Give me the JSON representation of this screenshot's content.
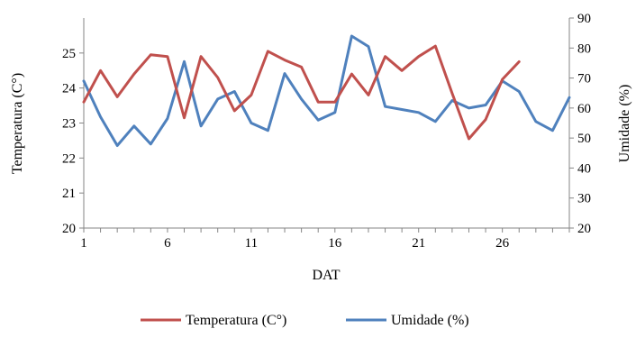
{
  "chart_data": {
    "type": "line",
    "title": "",
    "xlabel": "DAT",
    "ylabel_left": "Temperatura (C°)",
    "ylabel_right": "Umidade (%)",
    "x_ticks": [
      "1",
      "6",
      "11",
      "16",
      "21",
      "26"
    ],
    "xlim": [
      1,
      30
    ],
    "ylim_left": [
      20,
      26
    ],
    "ylim_right": [
      20,
      90
    ],
    "yticks_left": [
      "20",
      "21",
      "22",
      "23",
      "24",
      "25"
    ],
    "yticks_right": [
      "20",
      "30",
      "40",
      "50",
      "60",
      "70",
      "80",
      "90"
    ],
    "grid": false,
    "legend_position": "bottom",
    "series": [
      {
        "name": "Temperatura (C°)",
        "axis": "left",
        "color": "#c0504d",
        "x": [
          1,
          2,
          3,
          4,
          5,
          6,
          7,
          8,
          9,
          10,
          11,
          12,
          13,
          14,
          15,
          16,
          17,
          18,
          19,
          20,
          21,
          22,
          23,
          24,
          25,
          26,
          27
        ],
        "values": [
          23.6,
          24.5,
          23.75,
          24.4,
          24.95,
          24.9,
          23.15,
          24.9,
          24.3,
          23.35,
          23.8,
          25.05,
          24.8,
          24.6,
          23.6,
          23.6,
          24.4,
          23.8,
          24.9,
          24.5,
          24.9,
          25.2,
          23.85,
          22.55,
          23.1,
          24.25,
          24.75
        ]
      },
      {
        "name": "Umidade (%)",
        "axis": "right",
        "color": "#4f81bd",
        "x": [
          1,
          2,
          3,
          4,
          5,
          6,
          7,
          8,
          9,
          10,
          11,
          12,
          13,
          14,
          15,
          16,
          17,
          18,
          19,
          20,
          21,
          22,
          23,
          24,
          25,
          26,
          27,
          28,
          29,
          30
        ],
        "values": [
          69,
          57,
          47.5,
          54,
          48,
          56.5,
          75.5,
          54,
          63,
          65.5,
          55,
          52.5,
          71.5,
          63,
          56,
          58.5,
          84,
          80.5,
          60.5,
          59.5,
          58.5,
          55.5,
          62.5,
          60,
          61,
          69,
          65.5,
          55.5,
          52.5,
          63.5
        ]
      }
    ]
  }
}
